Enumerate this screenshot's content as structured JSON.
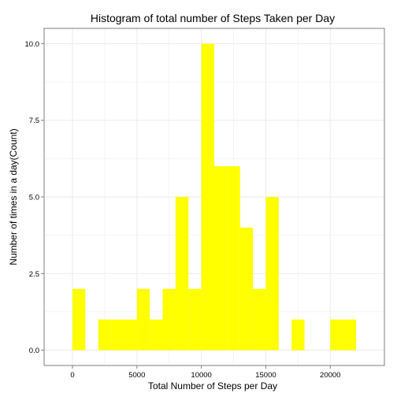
{
  "chart_data": {
    "type": "bar",
    "title": "Histogram of total number of Steps Taken per Day",
    "xlabel": "Total Number of Steps per Day",
    "ylabel": "Number of times in a day(Count)",
    "xlim": [
      -2200,
      24200
    ],
    "ylim": [
      -0.5,
      10.5
    ],
    "x_ticks": [
      0,
      5000,
      10000,
      15000,
      20000
    ],
    "x_tick_labels": [
      "0",
      "5000",
      "10000",
      "15000",
      "20000"
    ],
    "y_ticks": [
      0,
      2.5,
      5,
      7.5,
      10
    ],
    "y_tick_labels": [
      "0.0",
      "2.5",
      "5.0",
      "7.5",
      "10.0"
    ],
    "bin_width": 1000,
    "bin_starts": [
      0,
      1000,
      2000,
      3000,
      4000,
      5000,
      6000,
      7000,
      8000,
      9000,
      10000,
      11000,
      12000,
      13000,
      14000,
      15000,
      16000,
      17000,
      18000,
      19000,
      20000,
      21000
    ],
    "counts": [
      2,
      0,
      1,
      1,
      1,
      2,
      1,
      2,
      5,
      2,
      10,
      6,
      6,
      4,
      2,
      5,
      0,
      1,
      0,
      0,
      1,
      1
    ],
    "bar_color": "#ffff00",
    "grid": true,
    "grid_color": "#ebebeb",
    "axis_color": "#7f7f7f",
    "background": "#ffffff"
  }
}
